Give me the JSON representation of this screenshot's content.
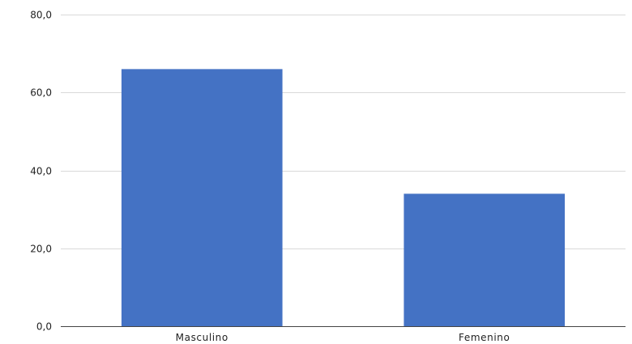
{
  "chart_data": {
    "type": "bar",
    "title": "",
    "xlabel": "",
    "ylabel": "",
    "categories": [
      "Masculino",
      "Femenino"
    ],
    "values": [
      66.0,
      34.0
    ],
    "ylim": [
      0,
      80
    ],
    "yticks": [
      0,
      20,
      40,
      60,
      80
    ],
    "ytick_labels": [
      "0,0",
      "20,0",
      "40,0",
      "60,0",
      "80,0"
    ],
    "grid": true,
    "legend": "none",
    "bar_color": "#4472c4"
  }
}
